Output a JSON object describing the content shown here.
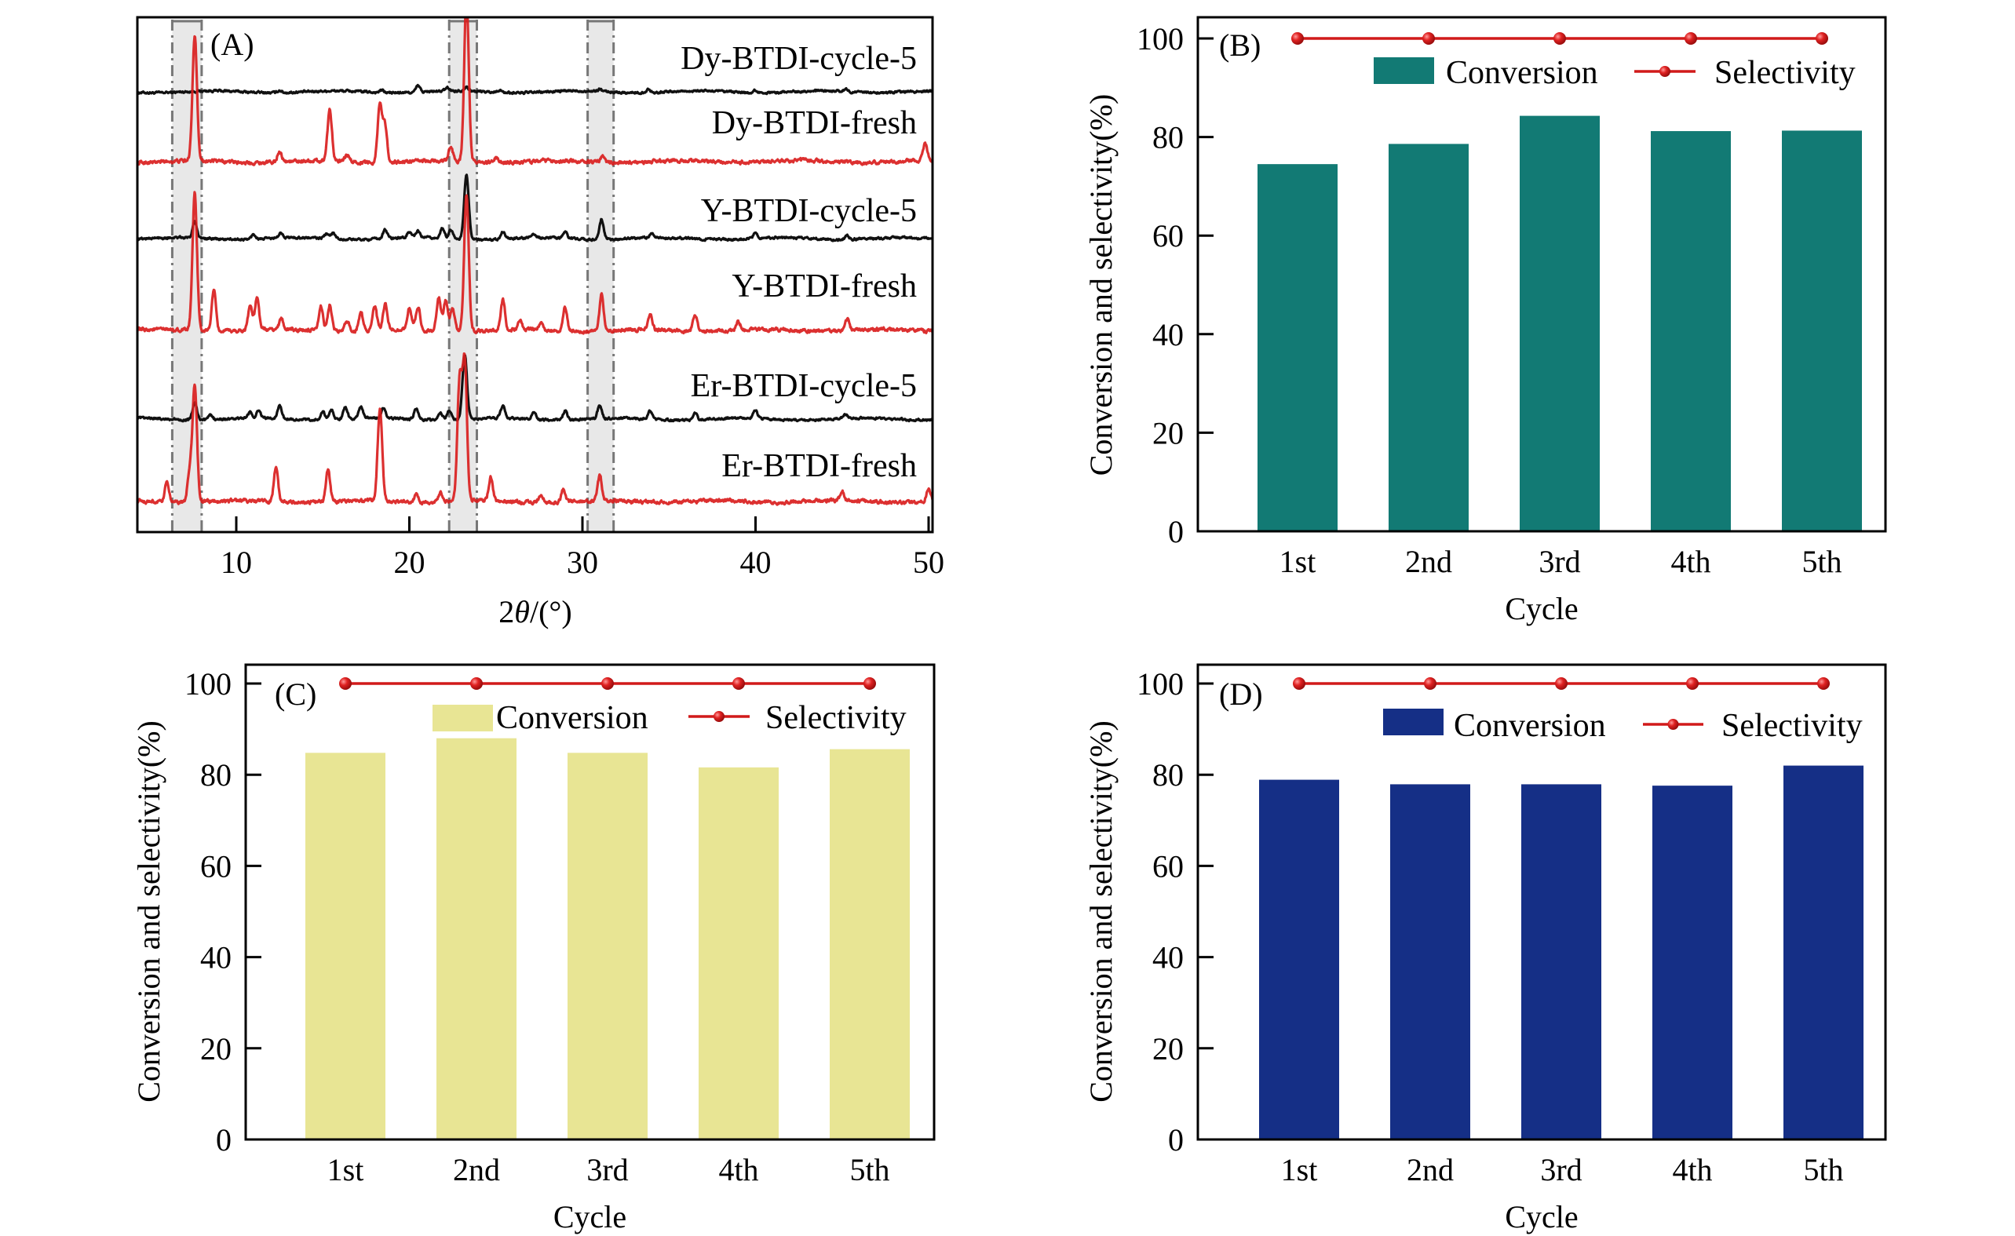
{
  "figure": {
    "panels": [
      "A",
      "B",
      "C",
      "D"
    ]
  },
  "colors": {
    "cycle_trace": "#111111",
    "fresh_trace": "#d91e1e",
    "selectivity": "#d11a1a",
    "conversion_B": "#127a74",
    "conversion_C": "#e8e594",
    "conversion_D": "#152f86",
    "band": "#d9d9d9"
  },
  "chart_data": [
    {
      "panel": "A",
      "type": "line",
      "panel_label": "(A)",
      "title": "",
      "xlabel": "2θ/(°)",
      "xlabel_parts": {
        "prefix": "2",
        "theta": "θ",
        "suffix": "/(°)"
      },
      "ylabel": "",
      "xlim": [
        4.4,
        50
      ],
      "xticks": [
        10,
        20,
        30,
        40,
        50
      ],
      "xtick_labels": [
        "10",
        "20",
        "30",
        "40",
        "50"
      ],
      "y_units": "intensity (a.u., stacked)",
      "grid": false,
      "highlight_bands_2theta": [
        [
          6.3,
          8.0
        ],
        [
          22.3,
          23.9
        ],
        [
          30.3,
          31.8
        ]
      ],
      "series": [
        {
          "name": "Dy-BTDI-cycle-5",
          "color_key": "cycle_trace",
          "noise": 2.5,
          "peaks": [
            [
              12.5,
              3
            ],
            [
              18.4,
              3
            ],
            [
              20.5,
              8
            ],
            [
              22.2,
              4
            ],
            [
              23.3,
              6
            ],
            [
              25.2,
              3
            ],
            [
              31.0,
              3
            ],
            [
              33.8,
              4
            ],
            [
              40.0,
              3
            ],
            [
              45.2,
              3
            ]
          ]
        },
        {
          "name": "Dy-BTDI-fresh",
          "color_key": "fresh_trace",
          "noise": 4,
          "peaks": [
            [
              7.6,
              160
            ],
            [
              12.5,
              14
            ],
            [
              15.4,
              65
            ],
            [
              16.4,
              8
            ],
            [
              18.3,
              75
            ],
            [
              18.6,
              45
            ],
            [
              22.4,
              18
            ],
            [
              23.3,
              210
            ],
            [
              25.0,
              6
            ],
            [
              31.2,
              8
            ],
            [
              49.8,
              22
            ]
          ]
        },
        {
          "name": "Y-BTDI-cycle-5",
          "color_key": "cycle_trace",
          "noise": 2.5,
          "peaks": [
            [
              7.6,
              22
            ],
            [
              11.0,
              6
            ],
            [
              12.6,
              6
            ],
            [
              15.2,
              6
            ],
            [
              15.6,
              8
            ],
            [
              18.6,
              12
            ],
            [
              20.0,
              8
            ],
            [
              20.5,
              8
            ],
            [
              21.9,
              12
            ],
            [
              22.4,
              12
            ],
            [
              23.3,
              82
            ],
            [
              25.4,
              9
            ],
            [
              27.2,
              5
            ],
            [
              29.0,
              8
            ],
            [
              31.1,
              26
            ],
            [
              34.0,
              6
            ],
            [
              40.0,
              8
            ],
            [
              45.3,
              5
            ]
          ]
        },
        {
          "name": "Y-BTDI-fresh",
          "color_key": "fresh_trace",
          "noise": 4,
          "peaks": [
            [
              7.6,
              175
            ],
            [
              8.7,
              52
            ],
            [
              10.8,
              32
            ],
            [
              11.2,
              40
            ],
            [
              12.6,
              14
            ],
            [
              14.9,
              31
            ],
            [
              15.4,
              33
            ],
            [
              16.4,
              13
            ],
            [
              17.2,
              25
            ],
            [
              18.0,
              30
            ],
            [
              18.6,
              32
            ],
            [
              20.0,
              28
            ],
            [
              20.5,
              30
            ],
            [
              21.7,
              42
            ],
            [
              22.1,
              40
            ],
            [
              22.5,
              30
            ],
            [
              23.3,
              175
            ],
            [
              25.4,
              38
            ],
            [
              26.4,
              12
            ],
            [
              27.6,
              10
            ],
            [
              29.0,
              30
            ],
            [
              31.1,
              45
            ],
            [
              33.9,
              20
            ],
            [
              36.5,
              22
            ],
            [
              39.0,
              10
            ],
            [
              45.3,
              14
            ]
          ]
        },
        {
          "name": "Er-BTDI-cycle-5",
          "color_key": "cycle_trace",
          "noise": 2.5,
          "peaks": [
            [
              7.6,
              22
            ],
            [
              8.5,
              6
            ],
            [
              10.8,
              8
            ],
            [
              11.3,
              10
            ],
            [
              12.5,
              17
            ],
            [
              15.0,
              10
            ],
            [
              15.5,
              13
            ],
            [
              16.3,
              15
            ],
            [
              17.2,
              14
            ],
            [
              18.5,
              12
            ],
            [
              20.4,
              14
            ],
            [
              21.8,
              10
            ],
            [
              22.3,
              12
            ],
            [
              23.2,
              82
            ],
            [
              25.4,
              16
            ],
            [
              27.2,
              8
            ],
            [
              29.0,
              12
            ],
            [
              31.0,
              18
            ],
            [
              33.9,
              10
            ],
            [
              36.5,
              8
            ],
            [
              40.0,
              10
            ],
            [
              45.2,
              6
            ]
          ]
        },
        {
          "name": "Er-BTDI-fresh",
          "color_key": "fresh_trace",
          "noise": 4,
          "peaks": [
            [
              6.0,
              26
            ],
            [
              7.3,
              36
            ],
            [
              7.6,
              148
            ],
            [
              12.3,
              46
            ],
            [
              15.3,
              40
            ],
            [
              18.3,
              118
            ],
            [
              20.4,
              10
            ],
            [
              21.8,
              12
            ],
            [
              22.9,
              150
            ],
            [
              23.2,
              175
            ],
            [
              24.7,
              30
            ],
            [
              27.6,
              10
            ],
            [
              28.9,
              16
            ],
            [
              31.0,
              32
            ],
            [
              45.0,
              12
            ],
            [
              50.0,
              18
            ]
          ]
        }
      ]
    },
    {
      "panel": "B",
      "type": "bar",
      "panel_label": "(B)",
      "title": "",
      "xlabel": "Cycle",
      "ylabel": "Conversion and selectivity(%)",
      "categories": [
        "1st",
        "2nd",
        "3rd",
        "4th",
        "5th"
      ],
      "ylim": [
        0,
        100
      ],
      "yticks": [
        0,
        20,
        40,
        60,
        80,
        100
      ],
      "ytick_labels": [
        "0",
        "20",
        "40",
        "60",
        "80",
        "100"
      ],
      "grid": false,
      "legend": {
        "placement": "top-right",
        "entries": [
          "Conversion",
          "Selectivity"
        ]
      },
      "series": [
        {
          "name": "Conversion",
          "type": "bar",
          "color_key": "conversion_B",
          "values": [
            74.5,
            78.6,
            84.3,
            81.2,
            81.3
          ]
        },
        {
          "name": "Selectivity",
          "type": "line",
          "color_key": "selectivity",
          "values": [
            100,
            100,
            100,
            100,
            100
          ]
        }
      ]
    },
    {
      "panel": "C",
      "type": "bar",
      "panel_label": "(C)",
      "title": "",
      "xlabel": "Cycle",
      "ylabel": "Conversion and selectivity(%)",
      "categories": [
        "1st",
        "2nd",
        "3rd",
        "4th",
        "5th"
      ],
      "ylim": [
        0,
        100
      ],
      "yticks": [
        0,
        20,
        40,
        60,
        80,
        100
      ],
      "ytick_labels": [
        "0",
        "20",
        "40",
        "60",
        "80",
        "100"
      ],
      "grid": false,
      "legend": {
        "placement": "top-right",
        "entries": [
          "Conversion",
          "Selectivity"
        ]
      },
      "series": [
        {
          "name": "Conversion",
          "type": "bar",
          "color_key": "conversion_C",
          "values": [
            84.8,
            88.0,
            84.8,
            81.6,
            85.6
          ]
        },
        {
          "name": "Selectivity",
          "type": "line",
          "color_key": "selectivity",
          "values": [
            100,
            100,
            100,
            100,
            100
          ]
        }
      ]
    },
    {
      "panel": "D",
      "type": "bar",
      "panel_label": "(D)",
      "title": "",
      "xlabel": "Cycle",
      "ylabel": "Conversion and selectivity(%)",
      "categories": [
        "1st",
        "2nd",
        "3rd",
        "4th",
        "5th"
      ],
      "ylim": [
        0,
        100
      ],
      "yticks": [
        0,
        20,
        40,
        60,
        80,
        100
      ],
      "ytick_labels": [
        "0",
        "20",
        "40",
        "60",
        "80",
        "100"
      ],
      "grid": false,
      "legend": {
        "placement": "top-right",
        "entries": [
          "Conversion",
          "Selectivity"
        ]
      },
      "series": [
        {
          "name": "Conversion",
          "type": "bar",
          "color_key": "conversion_D",
          "values": [
            78.9,
            77.9,
            77.9,
            77.6,
            82.0
          ]
        },
        {
          "name": "Selectivity",
          "type": "line",
          "color_key": "selectivity",
          "values": [
            100,
            100,
            100,
            100,
            100
          ]
        }
      ]
    }
  ]
}
